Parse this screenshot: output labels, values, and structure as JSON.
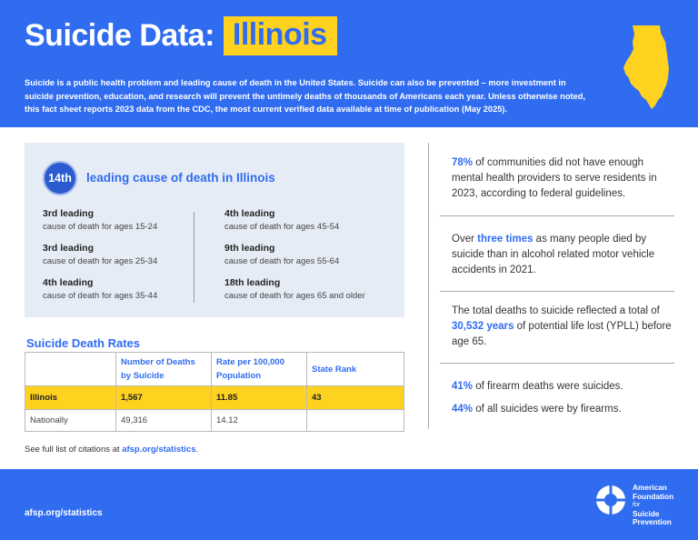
{
  "header": {
    "title": "Suicide Data:",
    "state": "Illinois",
    "intro": "Suicide is a public health problem and leading cause of death in the United States. Suicide can also be prevented – more investment in suicide prevention, education, and research will prevent the untimely deaths of thousands of Americans each year. Unless otherwise noted, this fact sheet reports 2023 data from the CDC, the most current verified data available at time of publication (May 2025)."
  },
  "leading": {
    "rank": "14th",
    "title": "leading cause of death in Illinois",
    "items": [
      {
        "rank": "3rd leading",
        "desc": "cause of death for ages 15-24"
      },
      {
        "rank": "3rd leading",
        "desc": "cause of death for ages 25-34"
      },
      {
        "rank": "4th leading",
        "desc": "cause of death for ages 35-44"
      },
      {
        "rank": "4th leading",
        "desc": "cause of death for ages 45-54"
      },
      {
        "rank": "9th leading",
        "desc": "cause of death for ages 55-64"
      },
      {
        "rank": "18th leading",
        "desc": "cause of death for ages 65 and older"
      }
    ]
  },
  "rates": {
    "title": "Suicide Death Rates",
    "headers": [
      "",
      "Number of Deaths by Suicide",
      "Rate per 100,000 Population",
      "State Rank"
    ],
    "rows": [
      {
        "label": "Illinois",
        "deaths": "1,567",
        "rate": "11.85",
        "rank": "43"
      },
      {
        "label": "Nationally",
        "deaths": "49,316",
        "rate": "14.12",
        "rank": ""
      }
    ]
  },
  "citation": {
    "prefix": "See full list of citations at ",
    "link": "afsp.org/statistics",
    "suffix": "."
  },
  "stats": [
    {
      "highlight": "78%",
      "text": " of communities did not have enough mental health providers to serve residents in 2023, according to federal guidelines."
    },
    {
      "before": "Over ",
      "highlight": "three times",
      "after": " as many people died by suicide than in alcohol related motor vehicle accidents in 2021."
    },
    {
      "before": "The total deaths to suicide reflected a total of ",
      "highlight": "30,532 years",
      "after": " of potential life lost (YPLL) before age 65."
    },
    {
      "highlight": "41%",
      "text": " of firearm deaths were suicides."
    },
    {
      "highlight": "44%",
      "text": " of all suicides were by firearms."
    }
  ],
  "footer": {
    "url": "afsp.org/statistics",
    "org_line1": "American",
    "org_line2": "Foundation",
    "org_for": "for",
    "org_line3": "Suicide",
    "org_line4": "Prevention"
  },
  "colors": {
    "brand_blue": "#2f6cf0",
    "accent_yellow": "#ffd21f",
    "panel_bg": "#e6ecf6"
  },
  "icons": {
    "state_map": "illinois-map-icon",
    "logo": "afsp-lifebuoy-logo-icon"
  }
}
